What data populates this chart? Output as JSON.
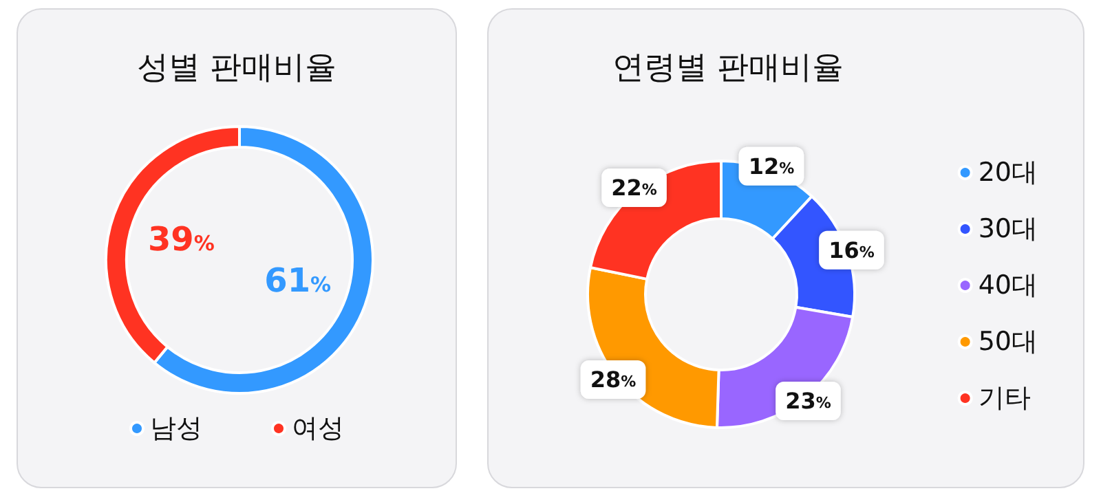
{
  "chart_data": [
    {
      "type": "donut",
      "title": "성별 판매비율",
      "categories": [
        "남성",
        "여성"
      ],
      "values": [
        61,
        39
      ],
      "colors": [
        "#3399ff",
        "#ff3322"
      ],
      "value_labels": [
        "61%",
        "39%"
      ],
      "legend": "bottom"
    },
    {
      "type": "donut",
      "title": "연령별 판매비율",
      "categories": [
        "20대",
        "30대",
        "40대",
        "50대",
        "기타"
      ],
      "values": [
        12,
        16,
        23,
        28,
        22
      ],
      "colors": [
        "#3399ff",
        "#3355ff",
        "#9966ff",
        "#ff9900",
        "#ff3322"
      ],
      "value_labels": [
        "12%",
        "16%",
        "23%",
        "28%",
        "22%"
      ],
      "legend": "right"
    }
  ]
}
